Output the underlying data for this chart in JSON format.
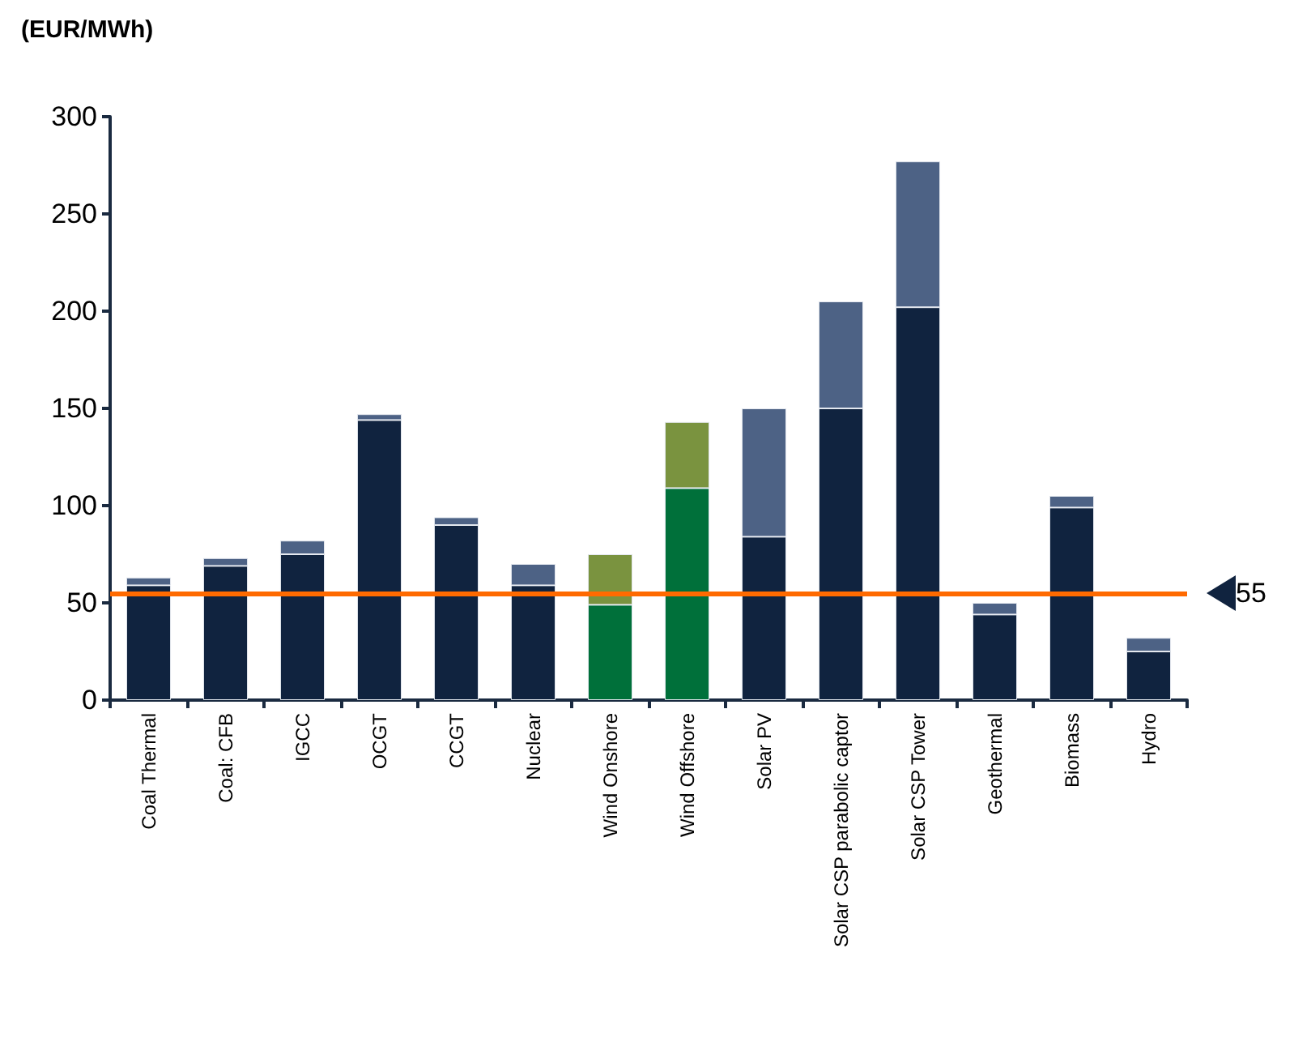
{
  "chart_data": {
    "type": "bar",
    "ylabel": "(EUR/MWh)",
    "stacked": true,
    "categories": [
      "Coal Thermal",
      "Coal: CFB",
      "IGCC",
      "OCGT",
      "CCGT",
      "Nuclear",
      "Wind Onshore",
      "Wind Offshore",
      "Solar PV",
      "Solar CSP parabolic captor",
      "Solar CSP Tower",
      "Geothermal",
      "Biomass",
      "Hydro"
    ],
    "series": [
      {
        "colors": [
          "#10233f",
          "#10233f",
          "#10233f",
          "#10233f",
          "#10233f",
          "#10233f",
          "#00703a",
          "#00703a",
          "#10233f",
          "#10233f",
          "#10233f",
          "#10233f",
          "#10233f",
          "#10233f"
        ],
        "values": [
          59,
          69,
          75,
          144,
          90,
          59,
          49,
          109,
          84,
          150,
          202,
          44,
          99,
          25
        ]
      },
      {
        "colors": [
          "#4d6285",
          "#4d6285",
          "#4d6285",
          "#4d6285",
          "#4d6285",
          "#4d6285",
          "#7a933f",
          "#7a933f",
          "#4d6285",
          "#4d6285",
          "#4d6285",
          "#4d6285",
          "#4d6285",
          "#4d6285"
        ],
        "values": [
          4,
          4,
          7,
          3,
          4,
          11,
          26,
          34,
          66,
          55,
          75,
          6,
          6,
          7
        ]
      }
    ],
    "ylim": [
      0,
      300
    ],
    "yticks": [
      0,
      50,
      100,
      150,
      200,
      250,
      300
    ],
    "ref_lines": [
      {
        "axis": "y",
        "value": 55,
        "label": "55",
        "color": "#ff6a00"
      }
    ]
  }
}
